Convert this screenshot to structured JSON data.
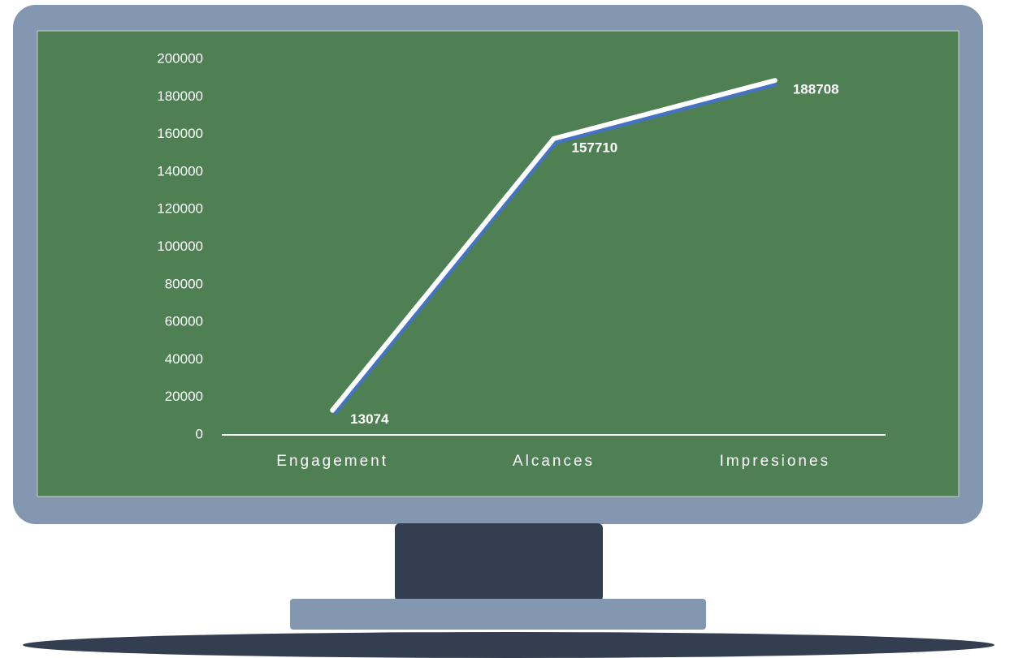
{
  "chart_data": {
    "type": "line",
    "categories": [
      "Engagement",
      "Alcances",
      "Impresiones"
    ],
    "values": [
      13074,
      157710,
      188708
    ],
    "color": "#ffffff",
    "ylim": [
      0,
      200000
    ],
    "yticks": [
      0,
      20000,
      40000,
      60000,
      80000,
      100000,
      120000,
      140000,
      160000,
      180000,
      200000
    ],
    "drop_lines": true
  }
}
